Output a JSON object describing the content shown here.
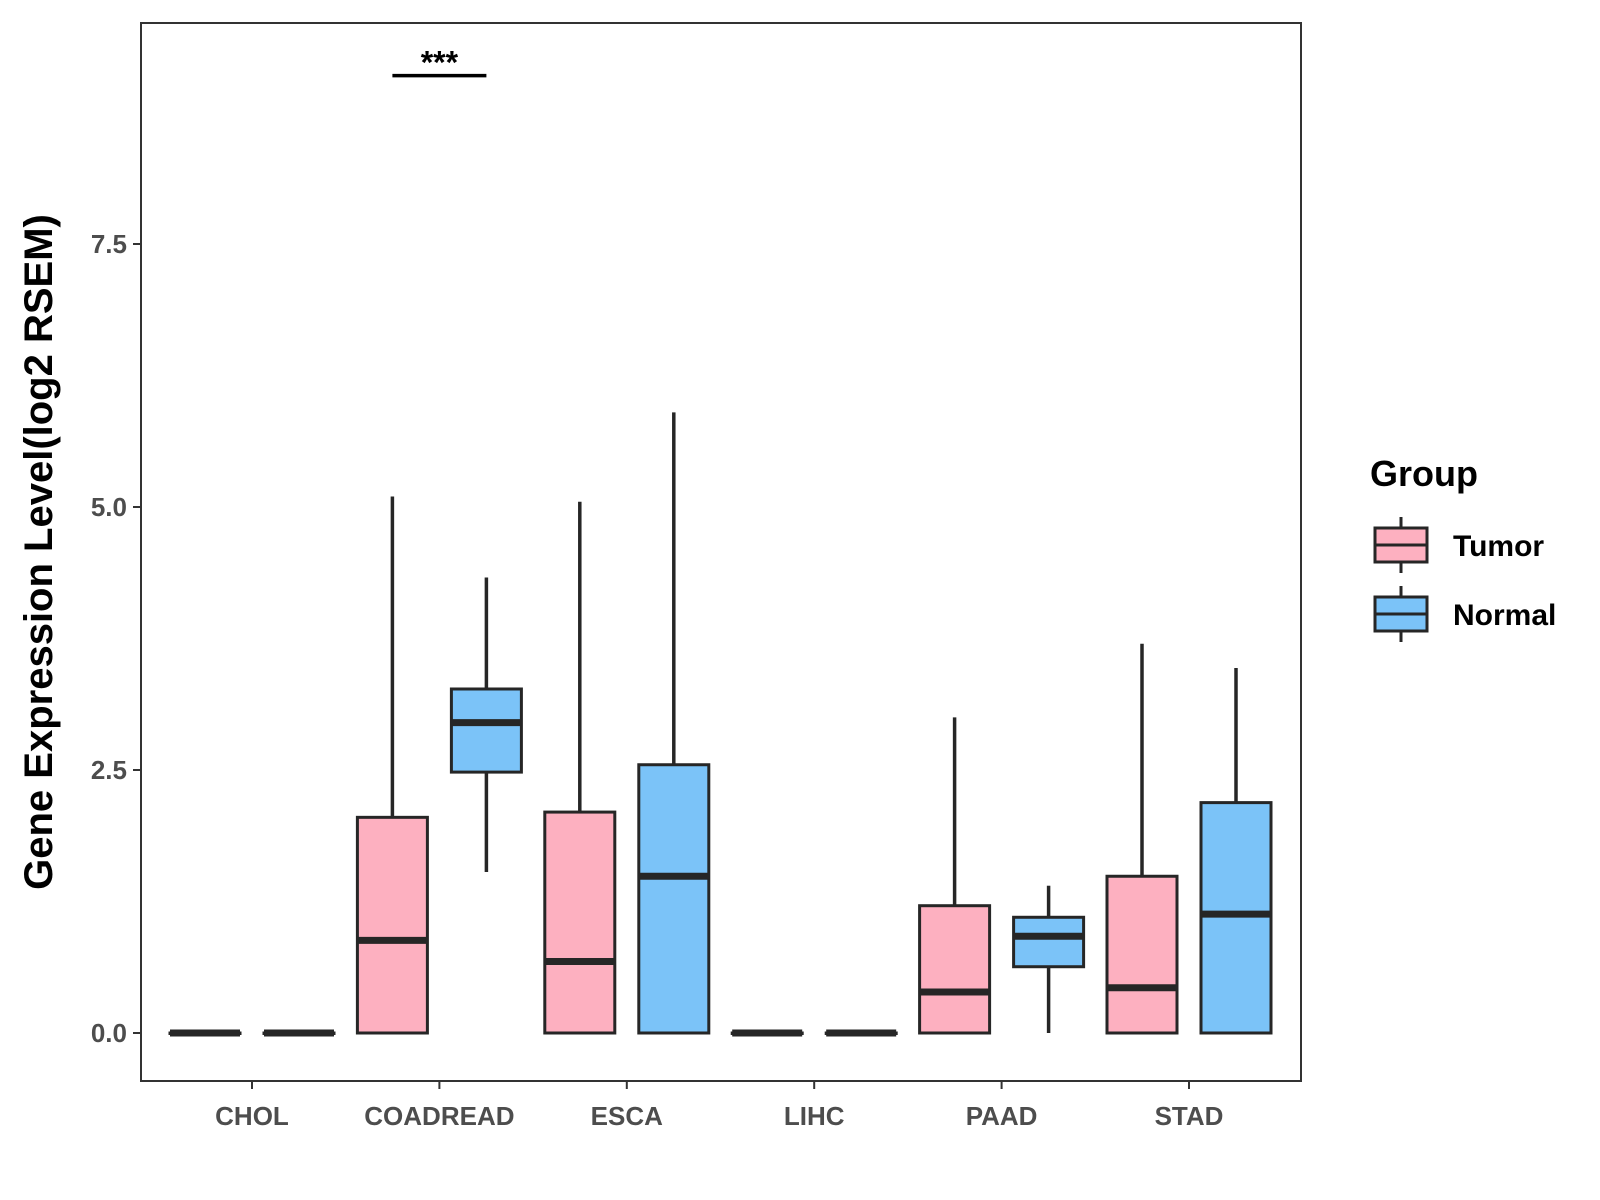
{
  "chart_data": {
    "type": "boxplot",
    "title": "",
    "xlabel": "",
    "ylabel": "Gene Expression Level(log2 RSEM)",
    "ylim": [
      -0.45,
      9.6
    ],
    "yticks": [
      0.0,
      2.5,
      5.0,
      7.5
    ],
    "ytick_labels": [
      "0.0",
      "2.5",
      "5.0",
      "7.5"
    ],
    "categories": [
      "CHOL",
      "COADREAD",
      "ESCA",
      "LIHC",
      "PAAD",
      "STAD"
    ],
    "legend": {
      "title": "Group",
      "position": "right"
    },
    "series": [
      {
        "name": "Tumor",
        "color": "#FDB0C0",
        "boxes": [
          {
            "min": 0,
            "q1": 0,
            "median": 0,
            "q3": 0,
            "max": 0
          },
          {
            "min": 0,
            "q1": 0,
            "median": 0.88,
            "q3": 2.05,
            "max": 5.1
          },
          {
            "min": 0,
            "q1": 0,
            "median": 0.68,
            "q3": 2.1,
            "max": 5.05
          },
          {
            "min": 0,
            "q1": 0,
            "median": 0,
            "q3": 0,
            "max": 0
          },
          {
            "min": 0,
            "q1": 0,
            "median": 0.39,
            "q3": 1.21,
            "max": 3.0
          },
          {
            "min": 0,
            "q1": 0,
            "median": 0.43,
            "q3": 1.49,
            "max": 3.7
          }
        ]
      },
      {
        "name": "Normal",
        "color": "#7BC3F8",
        "boxes": [
          {
            "min": 0,
            "q1": 0,
            "median": 0,
            "q3": 0,
            "max": 0
          },
          {
            "min": 1.53,
            "q1": 2.48,
            "median": 2.95,
            "q3": 3.27,
            "max": 4.33
          },
          {
            "min": 0,
            "q1": 0,
            "median": 1.49,
            "q3": 2.55,
            "max": 5.9
          },
          {
            "min": 0,
            "q1": 0,
            "median": 0,
            "q3": 0,
            "max": 0
          },
          {
            "min": 0,
            "q1": 0.63,
            "median": 0.92,
            "q3": 1.1,
            "max": 1.4
          },
          {
            "min": 0,
            "q1": 0,
            "median": 1.13,
            "q3": 2.19,
            "max": 3.47
          }
        ]
      }
    ],
    "annotations": [
      {
        "category": "COADREAD",
        "text": "***",
        "y": 9.1
      }
    ]
  }
}
